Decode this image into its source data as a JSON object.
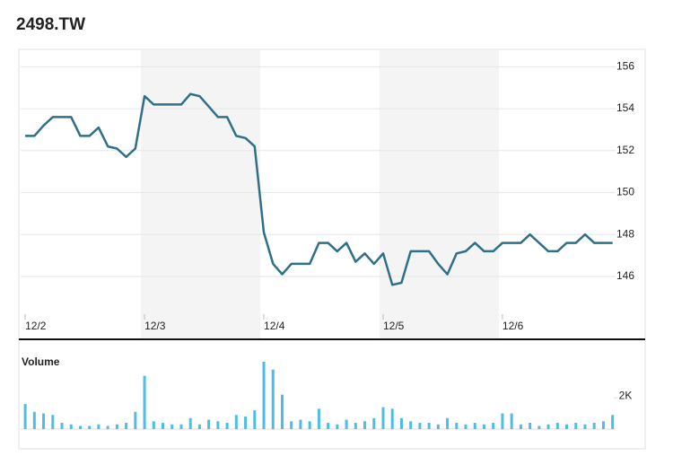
{
  "title": "2498.TW",
  "chart_data": [
    {
      "type": "line",
      "color": "#2f6f87",
      "grid": true,
      "x": [
        0,
        1,
        2,
        3,
        4,
        5,
        6,
        7,
        8,
        9,
        10,
        11,
        12,
        13,
        14,
        15,
        16,
        17,
        18,
        19,
        20,
        21,
        22,
        23,
        24,
        25,
        26,
        27,
        28,
        29,
        30,
        31,
        32,
        33,
        34,
        35,
        36,
        37,
        38,
        39,
        40,
        41,
        42,
        43,
        44,
        45,
        46,
        47,
        48,
        49,
        50,
        51,
        52,
        53,
        54,
        55,
        56,
        57,
        58,
        59,
        60,
        61,
        62,
        63,
        64
      ],
      "values": [
        152.7,
        152.7,
        153.2,
        153.6,
        153.6,
        153.6,
        152.7,
        152.7,
        153.1,
        152.2,
        152.1,
        151.7,
        152.1,
        154.6,
        154.2,
        154.2,
        154.2,
        154.2,
        154.7,
        154.6,
        154.1,
        153.6,
        153.6,
        152.7,
        152.6,
        152.2,
        148.1,
        146.6,
        146.1,
        146.6,
        146.6,
        146.6,
        147.6,
        147.6,
        147.2,
        147.6,
        146.7,
        147.1,
        146.6,
        147.1,
        145.6,
        145.7,
        147.2,
        147.2,
        147.2,
        146.6,
        146.1,
        147.1,
        147.2,
        147.6,
        147.2,
        147.2,
        147.6,
        147.6,
        147.6,
        148.0,
        147.6,
        147.2,
        147.2,
        147.6,
        147.6,
        148.0,
        147.6,
        147.6,
        147.6
      ],
      "xlim": [
        -0.5,
        65.5
      ],
      "xticks": [
        {
          "value": 0,
          "label": "12/2"
        },
        {
          "value": 13,
          "label": "12/3"
        },
        {
          "value": 26,
          "label": "12/4"
        },
        {
          "value": 39,
          "label": "12/5"
        },
        {
          "value": 52,
          "label": "12/6"
        }
      ],
      "ylim": [
        144.2,
        156.7
      ],
      "yticks": [
        146,
        148,
        150,
        152,
        154,
        156
      ]
    },
    {
      "type": "bar",
      "title": "Volume",
      "color": "#4cbde6",
      "x": [
        0,
        1,
        2,
        3,
        4,
        5,
        6,
        7,
        8,
        9,
        10,
        11,
        12,
        13,
        14,
        15,
        16,
        17,
        18,
        19,
        20,
        21,
        22,
        23,
        24,
        25,
        26,
        27,
        28,
        29,
        30,
        31,
        32,
        33,
        34,
        35,
        36,
        37,
        38,
        39,
        40,
        41,
        42,
        43,
        44,
        45,
        46,
        47,
        48,
        49,
        50,
        51,
        52,
        53,
        54,
        55,
        56,
        57,
        58,
        59,
        60,
        61,
        62,
        63,
        64
      ],
      "values": [
        1600,
        1100,
        1000,
        900,
        400,
        300,
        200,
        200,
        300,
        200,
        300,
        400,
        1100,
        3400,
        500,
        400,
        300,
        300,
        700,
        300,
        600,
        500,
        400,
        900,
        800,
        1200,
        4300,
        3800,
        2200,
        500,
        600,
        500,
        1300,
        400,
        300,
        600,
        400,
        500,
        700,
        1400,
        1300,
        700,
        500,
        400,
        400,
        300,
        700,
        400,
        300,
        400,
        300,
        400,
        1000,
        1000,
        300,
        400,
        200,
        300,
        400,
        300,
        400,
        300,
        400,
        500,
        900
      ],
      "xlim": [
        -0.5,
        65.5
      ],
      "ylim": [
        0,
        4700
      ],
      "yticks": [
        {
          "value": 2000,
          "label": "2K"
        }
      ]
    }
  ]
}
